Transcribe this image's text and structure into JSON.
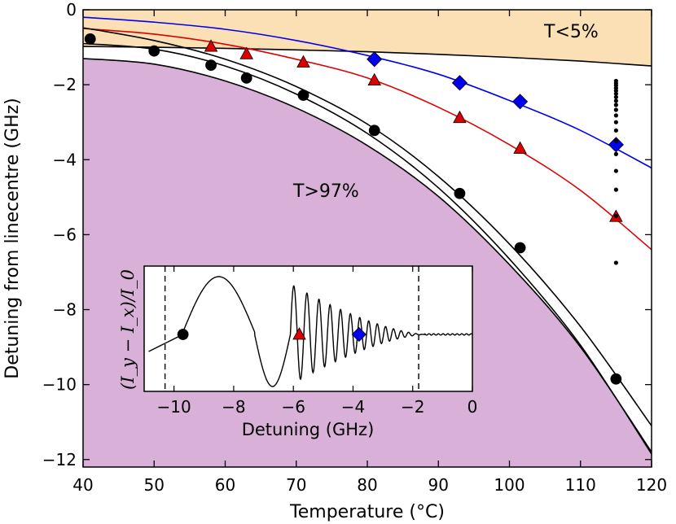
{
  "chart_data": [
    {
      "type": "scatter",
      "title": "",
      "xlabel": "Temperature (°C)",
      "ylabel": "Detuning from linecentre (GHz)",
      "xlim": [
        40,
        120
      ],
      "ylim": [
        -12.2,
        0
      ],
      "x_ticks": [
        40,
        50,
        60,
        70,
        80,
        90,
        100,
        110,
        120
      ],
      "x_tick_labels": [
        "40",
        "50",
        "60",
        "70",
        "80",
        "90",
        "100",
        "110",
        "120"
      ],
      "y_ticks": [
        0,
        -2,
        -4,
        -6,
        -8,
        -10,
        -12
      ],
      "y_tick_labels": [
        "0",
        "−2",
        "−4",
        "−6",
        "−8",
        "−10",
        "−12"
      ],
      "regions": [
        {
          "name": "T<5%",
          "color": "#fae0b4",
          "label": "T<5%"
        },
        {
          "name": "T>97%",
          "color": "#d8b0d8",
          "label": "T>97%"
        }
      ],
      "series": [
        {
          "name": "circles",
          "marker": "circle",
          "color": "#000000",
          "x": [
            41,
            50,
            58,
            63,
            71,
            81,
            93,
            101.5,
            115
          ],
          "y": [
            -0.78,
            -1.1,
            -1.48,
            -1.82,
            -2.28,
            -3.22,
            -4.9,
            -6.35,
            -9.85
          ]
        },
        {
          "name": "triangles",
          "marker": "triangle",
          "color": "#dd0000",
          "x": [
            58,
            63,
            71,
            81,
            93,
            101.5,
            115
          ],
          "y": [
            -0.98,
            -1.18,
            -1.4,
            -1.88,
            -2.88,
            -3.7,
            -5.52
          ]
        },
        {
          "name": "diamonds",
          "marker": "diamond",
          "color": "#0000ee",
          "x": [
            81,
            93,
            101.5,
            115
          ],
          "y": [
            -1.32,
            -1.95,
            -2.45,
            -3.6
          ]
        },
        {
          "name": "small dots",
          "marker": "dot",
          "color": "#000000",
          "x": [
            115,
            115,
            115,
            115,
            115,
            115,
            115,
            115,
            115,
            115,
            115,
            115,
            115,
            115,
            115,
            115,
            115,
            115,
            115
          ],
          "y": [
            -1.9,
            -1.96,
            -2.02,
            -2.09,
            -2.16,
            -2.24,
            -2.33,
            -2.43,
            -2.54,
            -2.67,
            -2.82,
            -3.0,
            -3.22,
            -3.5,
            -3.85,
            -4.3,
            -4.8,
            -5.5,
            -6.75
          ]
        }
      ],
      "fit_curves": [
        {
          "name": "blue fit",
          "color": "#0000ee",
          "x": [
            40,
            50,
            60,
            70,
            80,
            90,
            100,
            110,
            120
          ],
          "y": [
            -0.2,
            -0.33,
            -0.52,
            -0.82,
            -1.22,
            -1.72,
            -2.42,
            -3.22,
            -4.22
          ]
        },
        {
          "name": "red fit",
          "color": "#dd0000",
          "x": [
            40,
            50,
            60,
            70,
            80,
            90,
            100,
            110,
            120
          ],
          "y": [
            -0.5,
            -0.65,
            -0.92,
            -1.32,
            -1.82,
            -2.6,
            -3.6,
            -4.82,
            -6.4
          ]
        },
        {
          "name": "black fit upper",
          "color": "#000000",
          "x": [
            40,
            50,
            60,
            70,
            80,
            90,
            100,
            110,
            120
          ],
          "y": [
            -0.48,
            -0.82,
            -1.32,
            -2.05,
            -3.05,
            -4.45,
            -6.25,
            -8.45,
            -11.1
          ]
        },
        {
          "name": "black fit lower",
          "color": "#000000",
          "x": [
            40,
            50,
            60,
            70,
            80,
            90,
            100,
            110,
            120
          ],
          "y": [
            -0.9,
            -1.05,
            -1.5,
            -2.25,
            -3.3,
            -4.75,
            -6.65,
            -8.95,
            -11.85
          ]
        }
      ],
      "boundaries": {
        "t_low_x": [
          40,
          50,
          60,
          70,
          80,
          90,
          100,
          110,
          120
        ],
        "t_low_y": [
          -0.98,
          -1.0,
          -1.03,
          -1.07,
          -1.12,
          -1.19,
          -1.27,
          -1.37,
          -1.5
        ],
        "t_high_x": [
          40,
          50,
          60,
          70,
          80,
          90,
          100,
          110,
          120
        ],
        "t_high_y": [
          -1.3,
          -1.45,
          -1.9,
          -2.62,
          -3.62,
          -4.98,
          -6.8,
          -9.0,
          -11.8
        ]
      }
    },
    {
      "type": "line",
      "title": "inset",
      "xlabel": "Detuning (GHz)",
      "ylabel": "(I_y − I_x)/I_0",
      "xlim": [
        -11,
        0
      ],
      "x_ticks": [
        -10,
        -8,
        -6,
        -4,
        -2,
        0
      ],
      "x_tick_labels": [
        "−10",
        "−8",
        "−6",
        "−4",
        "−2",
        "0"
      ],
      "vlines": [
        -10.3,
        -1.8
      ],
      "markers": [
        {
          "marker": "circle",
          "color": "#000000",
          "x": -9.7
        },
        {
          "marker": "triangle",
          "color": "#dd0000",
          "x": -5.8
        },
        {
          "marker": "diamond",
          "color": "#0000ee",
          "x": -3.8
        }
      ]
    }
  ]
}
